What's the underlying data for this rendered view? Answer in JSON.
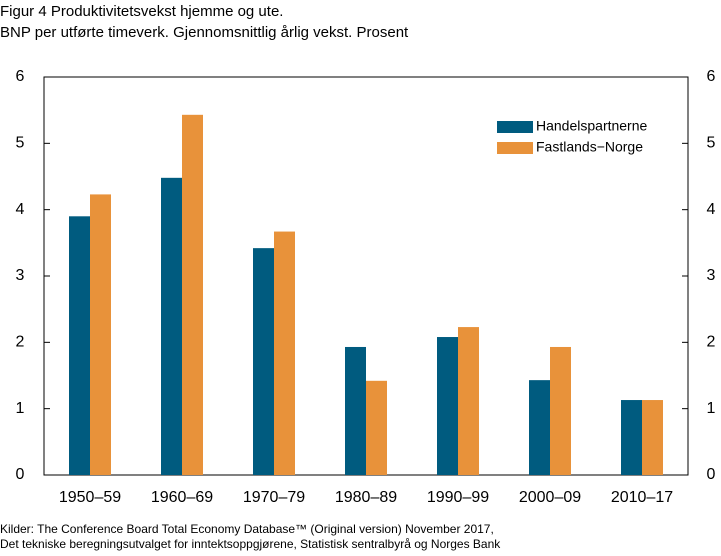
{
  "chart_data": {
    "type": "bar",
    "title": "Figur 4 Produktivitetsvekst hjemme og ute.",
    "subtitle": "BNP per utførte timeverk. Gjennomsnittlig årlig vekst. Prosent",
    "categories": [
      "1950–59",
      "1960–69",
      "1970–79",
      "1980–89",
      "1990–99",
      "2000–09",
      "2010–17"
    ],
    "series": [
      {
        "name": "Handelspartnerne",
        "color": "#005b7f",
        "values": [
          3.9,
          4.48,
          3.42,
          1.93,
          2.08,
          1.43,
          1.13
        ]
      },
      {
        "name": "Fastlands−Norge",
        "color": "#e8923a",
        "values": [
          4.23,
          5.43,
          3.67,
          1.42,
          2.23,
          1.93,
          1.13
        ]
      }
    ],
    "ylim": [
      0,
      6
    ],
    "yticks": [
      0,
      1,
      2,
      3,
      4,
      5,
      6
    ],
    "y2lim": [
      0,
      6
    ],
    "y2ticks": [
      0,
      1,
      2,
      3,
      4,
      5,
      6
    ],
    "legend": "upper right",
    "sources": [
      "Kilder: The Conference Board Total Economy Database™ (Original version) November 2017,",
      "Det tekniske beregningsutvalget for inntektsoppgjørene, Statistisk sentralbyrå og Norges Bank"
    ]
  }
}
